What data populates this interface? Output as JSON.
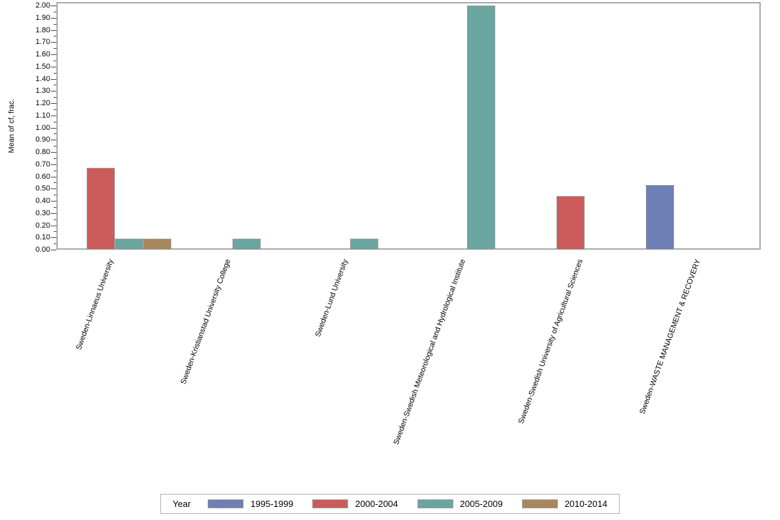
{
  "chart_data": {
    "type": "bar",
    "title": "",
    "ylabel": "Mean of cf, frac.",
    "xlabel": "",
    "ylim": [
      0,
      2.0
    ],
    "ytick_step": 0.1,
    "ytick_minor_step": 0.05,
    "grid": false,
    "legend": {
      "title": "Year",
      "position": "bottom"
    },
    "categories": [
      "Sweden-Linnaeus University",
      "Sweden-Kristianstad University College",
      "Sweden-Lund University",
      "Sweden-Swedish Meteorological and Hydrological Institute",
      "Sweden-Swedish University of Agricultural Sciences",
      "Sweden-WASTE MANAGEMENT & RECOVERY"
    ],
    "series": [
      {
        "name": "1995-1999",
        "color": "#6E7FB4",
        "values": [
          null,
          null,
          null,
          null,
          null,
          0.53
        ]
      },
      {
        "name": "2000-2004",
        "color": "#CC5C5C",
        "values": [
          0.67,
          null,
          null,
          null,
          0.44,
          null
        ]
      },
      {
        "name": "2005-2009",
        "color": "#6AA5A0",
        "values": [
          0.09,
          0.09,
          0.09,
          2.0,
          null,
          null
        ]
      },
      {
        "name": "2010-2014",
        "color": "#A8875C",
        "values": [
          0.09,
          null,
          null,
          null,
          null,
          null
        ]
      }
    ],
    "bar_border_color": "#9E9E9E",
    "frame_color": "#A7AAAD",
    "tick_color": "#4A4A4A",
    "text_color": "#000000"
  }
}
